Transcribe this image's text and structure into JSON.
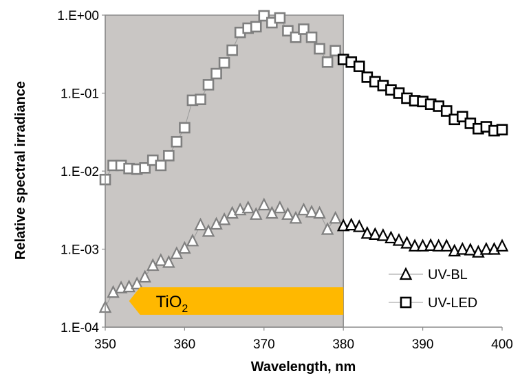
{
  "chart_data": {
    "type": "scatter",
    "xlabel": "Wavelength, nm",
    "ylabel": "Relative spectral irradiance",
    "xlim": [
      350,
      400
    ],
    "ylim": [
      0.0001,
      1
    ],
    "yscale": "log",
    "x_ticks": [
      "350",
      "360",
      "370",
      "380",
      "390",
      "400"
    ],
    "y_ticks": [
      "1.E-04",
      "1.E-03",
      "1.E-02",
      "1.E-01",
      "1.E+00"
    ],
    "legend_position": "bottom-right",
    "shaded_region": {
      "x_from": 350,
      "x_to": 380,
      "color": "#c9c6c4"
    },
    "annotation": {
      "label": "TiO",
      "subscript": "2",
      "arrow_color": "#ffb800",
      "x_from": 380,
      "x_to": 353
    },
    "series": [
      {
        "name": "UV-BL",
        "marker": "triangle",
        "color": "#000000",
        "x": [
          350,
          351,
          352,
          353,
          354,
          355,
          356,
          357,
          358,
          359,
          360,
          361,
          362,
          363,
          364,
          365,
          366,
          367,
          368,
          369,
          370,
          371,
          372,
          373,
          374,
          375,
          376,
          377,
          378,
          379,
          380,
          381,
          382,
          383,
          384,
          385,
          386,
          387,
          388,
          389,
          390,
          391,
          392,
          393,
          394,
          395,
          396,
          397,
          398,
          399,
          400
        ],
        "y": [
          0.00018,
          0.00028,
          0.00032,
          0.00033,
          0.00036,
          0.00044,
          0.00062,
          0.00072,
          0.00068,
          0.00088,
          0.00103,
          0.00128,
          0.00205,
          0.0017,
          0.0021,
          0.0024,
          0.0029,
          0.0032,
          0.0034,
          0.0028,
          0.0037,
          0.0029,
          0.0034,
          0.0028,
          0.0025,
          0.0032,
          0.003,
          0.0029,
          0.0018,
          0.0025,
          0.002,
          0.00205,
          0.00195,
          0.0016,
          0.00155,
          0.0015,
          0.0014,
          0.0013,
          0.0012,
          0.0011,
          0.0011,
          0.00112,
          0.0011,
          0.0011,
          0.00095,
          0.001,
          0.00098,
          0.00092,
          0.001,
          0.001,
          0.0011
        ]
      },
      {
        "name": "UV-LED",
        "marker": "square",
        "color": "#000000",
        "x": [
          350,
          351,
          352,
          353,
          354,
          355,
          356,
          357,
          358,
          359,
          360,
          361,
          362,
          363,
          364,
          365,
          366,
          367,
          368,
          369,
          370,
          371,
          372,
          373,
          374,
          375,
          376,
          377,
          378,
          379,
          380,
          381,
          382,
          383,
          384,
          385,
          386,
          387,
          388,
          389,
          390,
          391,
          392,
          393,
          394,
          395,
          396,
          397,
          398,
          399,
          400
        ],
        "y": [
          0.0078,
          0.0118,
          0.0118,
          0.0108,
          0.0106,
          0.011,
          0.0138,
          0.0118,
          0.0158,
          0.0238,
          0.036,
          0.081,
          0.083,
          0.128,
          0.178,
          0.245,
          0.355,
          0.6,
          0.68,
          0.71,
          0.98,
          0.8,
          0.92,
          0.63,
          0.52,
          0.66,
          0.52,
          0.37,
          0.25,
          0.35,
          0.27,
          0.25,
          0.22,
          0.16,
          0.14,
          0.125,
          0.11,
          0.1,
          0.086,
          0.08,
          0.078,
          0.072,
          0.068,
          0.059,
          0.046,
          0.05,
          0.041,
          0.035,
          0.037,
          0.033,
          0.034
        ]
      }
    ]
  }
}
